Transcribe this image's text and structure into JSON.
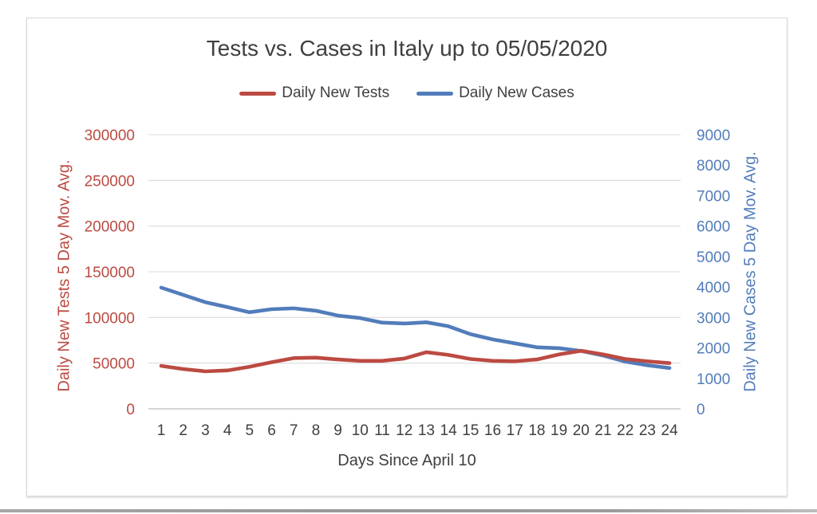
{
  "page": {
    "background_color": "#ffffff",
    "bottom_edge_color": "#9c9c9c"
  },
  "chart": {
    "title": "Tests vs. Cases in Italy up to 05/05/2020",
    "title_color": "#3f3f3f",
    "legend": [
      {
        "label": "Daily New Tests",
        "color": "#bc4a42"
      },
      {
        "label": "Daily New Cases",
        "color": "#527cba"
      }
    ],
    "gridline_color": "#d9d9d9",
    "axis_line_color": "#c8c8c8"
  },
  "chart_data": {
    "type": "line",
    "title": "Tests vs. Cases in Italy up to 05/05/2020",
    "xlabel": "Days Since April 10",
    "x": [
      1,
      2,
      3,
      4,
      5,
      6,
      7,
      8,
      9,
      10,
      11,
      12,
      13,
      14,
      15,
      16,
      17,
      18,
      19,
      20,
      21,
      22,
      23,
      24
    ],
    "series": [
      {
        "name": "Daily New Tests",
        "axis": "left",
        "color": "#bc4a42",
        "values": [
          47000,
          43500,
          41000,
          42000,
          46000,
          51000,
          55500,
          56000,
          54000,
          52500,
          52500,
          55000,
          62000,
          59000,
          54500,
          52500,
          52000,
          54000,
          59500,
          63500,
          59500,
          54500,
          52000,
          50000
        ]
      },
      {
        "name": "Daily New Cases",
        "axis": "right",
        "color": "#527cba",
        "values": [
          3980,
          3740,
          3500,
          3340,
          3170,
          3270,
          3300,
          3220,
          3060,
          2980,
          2830,
          2800,
          2840,
          2710,
          2450,
          2280,
          2150,
          2020,
          1990,
          1900,
          1750,
          1550,
          1430,
          1340
        ]
      }
    ],
    "left_axis": {
      "label": "Daily New Tests 5 Day Mov. Avg.",
      "color": "#bc4a42",
      "min": 0,
      "max": 300000,
      "step": 50000,
      "ticks": [
        0,
        50000,
        100000,
        150000,
        200000,
        250000,
        300000
      ]
    },
    "right_axis": {
      "label": "Daily New Cases 5 Day Mov. Avg.",
      "color": "#527cba",
      "min": 0,
      "max": 9000,
      "step": 1000,
      "ticks": [
        0,
        1000,
        2000,
        3000,
        4000,
        5000,
        6000,
        7000,
        8000,
        9000
      ]
    },
    "grid": true,
    "legend_position": "top"
  }
}
